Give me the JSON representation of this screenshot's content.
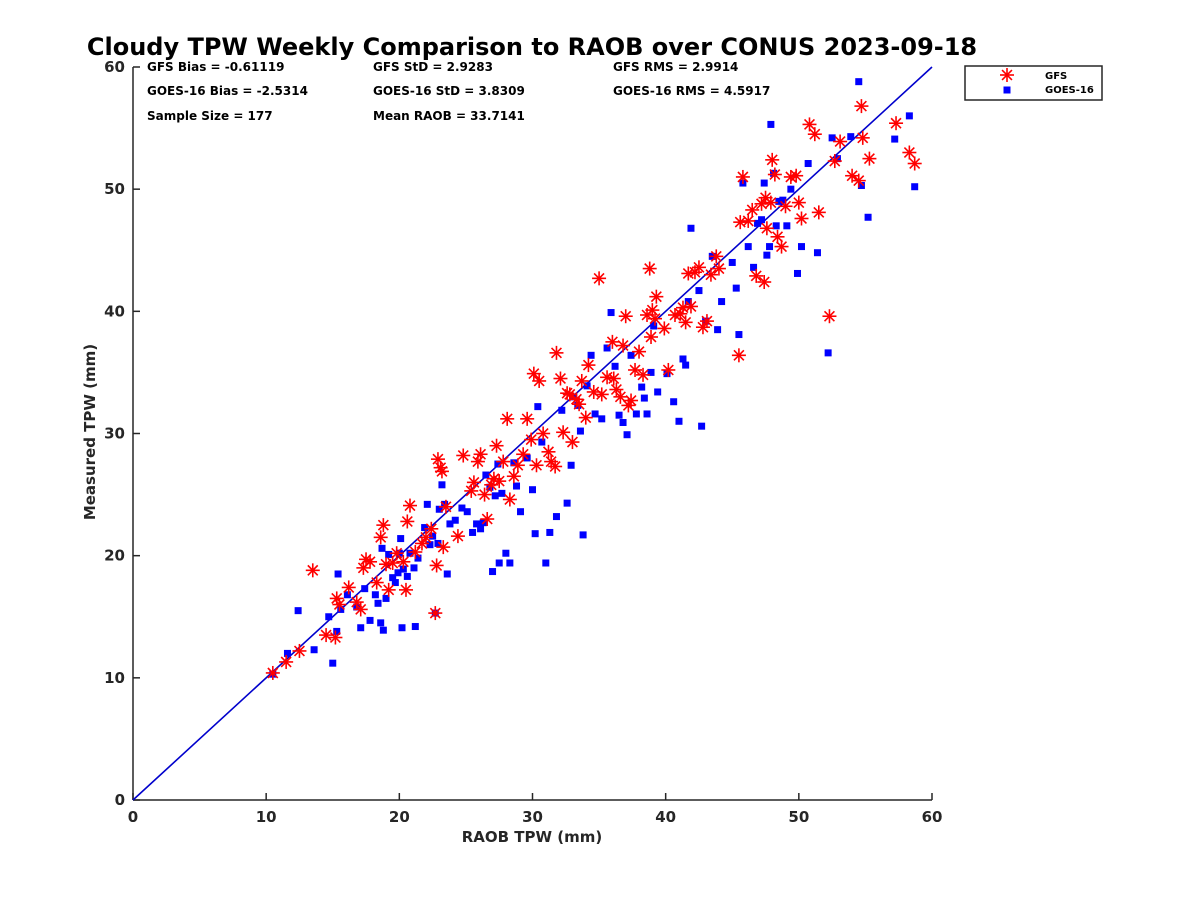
{
  "chart_data": {
    "type": "scatter",
    "title": "Cloudy TPW Weekly Comparison to RAOB over CONUS 2023-09-18",
    "xlabel": "RAOB TPW (mm)",
    "ylabel": "Measured TPW (mm)",
    "xlim": [
      0,
      60
    ],
    "ylim": [
      0,
      60
    ],
    "xticks": [
      "0",
      "10",
      "20",
      "30",
      "40",
      "50",
      "60"
    ],
    "yticks": [
      "0",
      "10",
      "20",
      "30",
      "40",
      "50",
      "60"
    ],
    "grid": false,
    "legend_position": "outside top-right",
    "stats": [
      "GFS Bias = -0.61119",
      "GFS StD = 2.9283",
      "GFS RMS = 2.9914",
      "GOES-16 Bias = -2.5314",
      "GOES-16 StD = 3.8309",
      "GOES-16 RMS = 4.5917",
      "Sample Size = 177",
      "Mean RAOB = 33.7141"
    ],
    "reference_line": {
      "x": [
        0,
        60
      ],
      "y": [
        0,
        60
      ],
      "color": "#0000cc"
    },
    "series": [
      {
        "name": "GFS",
        "marker": "asterisk",
        "color": "#ff0000",
        "points": [
          [
            10.5,
            10.4
          ],
          [
            12.5,
            12.2
          ],
          [
            11.5,
            11.3
          ],
          [
            13.5,
            18.8
          ],
          [
            14.5,
            13.5
          ],
          [
            15.2,
            13.3
          ],
          [
            15.3,
            16.5
          ],
          [
            15.5,
            16.0
          ],
          [
            16.2,
            17.4
          ],
          [
            16.8,
            16.2
          ],
          [
            17.1,
            15.6
          ],
          [
            17.3,
            19.0
          ],
          [
            17.5,
            19.7
          ],
          [
            17.8,
            19.5
          ],
          [
            18.3,
            17.8
          ],
          [
            18.6,
            21.5
          ],
          [
            18.8,
            22.5
          ],
          [
            19.0,
            19.3
          ],
          [
            19.2,
            17.2
          ],
          [
            19.5,
            19.4
          ],
          [
            19.8,
            20.2
          ],
          [
            20.3,
            19.5
          ],
          [
            20.5,
            17.2
          ],
          [
            20.6,
            22.8
          ],
          [
            20.8,
            24.1
          ],
          [
            21.2,
            20.3
          ],
          [
            21.7,
            21.0
          ],
          [
            22.0,
            21.5
          ],
          [
            22.4,
            22.2
          ],
          [
            22.7,
            15.3
          ],
          [
            22.8,
            19.2
          ],
          [
            22.9,
            27.9
          ],
          [
            23.1,
            27.2
          ],
          [
            23.2,
            26.9
          ],
          [
            23.3,
            20.7
          ],
          [
            23.5,
            24.0
          ],
          [
            24.4,
            21.6
          ],
          [
            24.8,
            28.2
          ],
          [
            25.4,
            25.3
          ],
          [
            25.6,
            26.0
          ],
          [
            25.9,
            27.7
          ],
          [
            26.1,
            28.3
          ],
          [
            26.4,
            25.0
          ],
          [
            26.6,
            23.0
          ],
          [
            26.9,
            25.8
          ],
          [
            27.1,
            26.3
          ],
          [
            27.3,
            29.0
          ],
          [
            27.5,
            26.1
          ],
          [
            27.8,
            27.7
          ],
          [
            28.1,
            31.2
          ],
          [
            28.3,
            24.6
          ],
          [
            28.6,
            26.5
          ],
          [
            28.9,
            27.4
          ],
          [
            29.3,
            28.3
          ],
          [
            29.6,
            31.2
          ],
          [
            29.9,
            29.5
          ],
          [
            30.1,
            34.9
          ],
          [
            30.3,
            27.4
          ],
          [
            30.5,
            34.3
          ],
          [
            30.8,
            30.0
          ],
          [
            31.2,
            28.5
          ],
          [
            31.4,
            27.7
          ],
          [
            31.7,
            27.3
          ],
          [
            31.8,
            36.6
          ],
          [
            32.1,
            34.5
          ],
          [
            32.3,
            30.1
          ],
          [
            32.6,
            33.3
          ],
          [
            32.8,
            33.2
          ],
          [
            33.0,
            29.3
          ],
          [
            33.3,
            32.8
          ],
          [
            33.5,
            32.4
          ],
          [
            33.7,
            34.3
          ],
          [
            34.0,
            31.3
          ],
          [
            34.2,
            35.6
          ],
          [
            34.6,
            33.4
          ],
          [
            35.0,
            42.7
          ],
          [
            35.2,
            33.2
          ],
          [
            35.6,
            34.6
          ],
          [
            36.0,
            37.5
          ],
          [
            36.1,
            34.5
          ],
          [
            36.3,
            33.6
          ],
          [
            36.6,
            33.0
          ],
          [
            36.8,
            37.2
          ],
          [
            37.0,
            39.6
          ],
          [
            37.2,
            32.3
          ],
          [
            37.4,
            32.7
          ],
          [
            37.7,
            35.2
          ],
          [
            38.0,
            36.7
          ],
          [
            38.3,
            34.8
          ],
          [
            38.6,
            39.7
          ],
          [
            38.8,
            43.5
          ],
          [
            38.9,
            37.9
          ],
          [
            39.0,
            40.1
          ],
          [
            39.2,
            39.4
          ],
          [
            39.3,
            41.2
          ],
          [
            39.9,
            38.6
          ],
          [
            40.2,
            35.2
          ],
          [
            40.7,
            39.7
          ],
          [
            41.1,
            39.8
          ],
          [
            41.3,
            40.3
          ],
          [
            41.5,
            39.1
          ],
          [
            41.7,
            43.1
          ],
          [
            41.9,
            40.4
          ],
          [
            42.2,
            43.2
          ],
          [
            42.5,
            43.6
          ],
          [
            42.8,
            38.7
          ],
          [
            43.1,
            39.2
          ],
          [
            43.4,
            43.0
          ],
          [
            43.8,
            44.5
          ],
          [
            44.0,
            43.5
          ],
          [
            45.5,
            36.4
          ],
          [
            45.6,
            47.3
          ],
          [
            45.8,
            51.0
          ],
          [
            46.2,
            47.4
          ],
          [
            46.5,
            48.3
          ],
          [
            46.8,
            42.9
          ],
          [
            47.2,
            48.8
          ],
          [
            47.4,
            42.4
          ],
          [
            47.5,
            49.3
          ],
          [
            47.6,
            46.8
          ],
          [
            47.9,
            48.9
          ],
          [
            48.0,
            52.4
          ],
          [
            48.2,
            51.2
          ],
          [
            48.4,
            46.1
          ],
          [
            48.7,
            45.3
          ],
          [
            49.0,
            48.6
          ],
          [
            49.4,
            51.0
          ],
          [
            49.8,
            51.1
          ],
          [
            50.0,
            48.9
          ],
          [
            50.2,
            47.6
          ],
          [
            50.8,
            55.3
          ],
          [
            51.2,
            54.5
          ],
          [
            51.5,
            48.1
          ],
          [
            52.3,
            39.6
          ],
          [
            52.7,
            52.3
          ],
          [
            53.1,
            53.9
          ],
          [
            54.0,
            51.1
          ],
          [
            54.5,
            50.7
          ],
          [
            54.7,
            56.8
          ],
          [
            54.8,
            54.2
          ],
          [
            55.3,
            52.5
          ],
          [
            57.3,
            55.4
          ],
          [
            58.3,
            53.0
          ],
          [
            58.7,
            52.1
          ]
        ]
      },
      {
        "name": "GOES-16",
        "marker": "square",
        "color": "#0000ff",
        "points": [
          [
            10.5,
            10.3
          ],
          [
            11.6,
            12.0
          ],
          [
            12.4,
            15.5
          ],
          [
            13.6,
            12.3
          ],
          [
            14.7,
            15.0
          ],
          [
            15.0,
            11.2
          ],
          [
            15.3,
            13.8
          ],
          [
            15.4,
            18.5
          ],
          [
            15.6,
            15.6
          ],
          [
            16.1,
            16.8
          ],
          [
            16.8,
            15.8
          ],
          [
            17.1,
            14.1
          ],
          [
            17.4,
            17.3
          ],
          [
            17.8,
            14.7
          ],
          [
            18.2,
            16.8
          ],
          [
            18.4,
            16.1
          ],
          [
            18.6,
            14.5
          ],
          [
            18.7,
            20.6
          ],
          [
            18.8,
            13.9
          ],
          [
            19.0,
            16.5
          ],
          [
            19.2,
            20.1
          ],
          [
            19.5,
            18.2
          ],
          [
            19.7,
            17.8
          ],
          [
            19.9,
            18.6
          ],
          [
            20.0,
            20.2
          ],
          [
            20.1,
            21.4
          ],
          [
            20.2,
            14.1
          ],
          [
            20.3,
            18.9
          ],
          [
            20.6,
            18.3
          ],
          [
            20.8,
            20.2
          ],
          [
            21.1,
            19.0
          ],
          [
            21.2,
            14.2
          ],
          [
            21.4,
            19.8
          ],
          [
            21.9,
            22.3
          ],
          [
            22.1,
            24.2
          ],
          [
            22.3,
            20.9
          ],
          [
            22.5,
            21.6
          ],
          [
            22.7,
            15.3
          ],
          [
            22.9,
            21.0
          ],
          [
            23.0,
            23.8
          ],
          [
            23.2,
            25.8
          ],
          [
            23.4,
            24.2
          ],
          [
            23.6,
            18.5
          ],
          [
            23.8,
            22.6
          ],
          [
            24.2,
            22.9
          ],
          [
            24.7,
            23.9
          ],
          [
            25.1,
            23.6
          ],
          [
            25.5,
            21.9
          ],
          [
            25.8,
            22.6
          ],
          [
            26.1,
            22.2
          ],
          [
            26.3,
            22.7
          ],
          [
            26.5,
            26.6
          ],
          [
            26.8,
            25.6
          ],
          [
            27.0,
            18.7
          ],
          [
            27.2,
            24.9
          ],
          [
            27.4,
            27.5
          ],
          [
            27.5,
            19.4
          ],
          [
            27.7,
            25.1
          ],
          [
            28.0,
            20.2
          ],
          [
            28.3,
            19.4
          ],
          [
            28.6,
            27.6
          ],
          [
            28.8,
            25.7
          ],
          [
            29.1,
            23.6
          ],
          [
            29.6,
            28.0
          ],
          [
            30.0,
            25.4
          ],
          [
            30.2,
            21.8
          ],
          [
            30.4,
            32.2
          ],
          [
            30.7,
            29.3
          ],
          [
            31.0,
            19.4
          ],
          [
            31.3,
            21.9
          ],
          [
            31.8,
            23.2
          ],
          [
            32.2,
            31.9
          ],
          [
            32.6,
            24.3
          ],
          [
            32.9,
            27.4
          ],
          [
            33.1,
            33.0
          ],
          [
            33.4,
            32.3
          ],
          [
            33.6,
            30.2
          ],
          [
            33.8,
            21.7
          ],
          [
            34.1,
            33.9
          ],
          [
            34.4,
            36.4
          ],
          [
            34.7,
            31.6
          ],
          [
            35.2,
            31.2
          ],
          [
            35.6,
            37.0
          ],
          [
            35.9,
            39.9
          ],
          [
            36.2,
            35.5
          ],
          [
            36.5,
            31.5
          ],
          [
            36.8,
            30.9
          ],
          [
            37.1,
            29.9
          ],
          [
            37.4,
            36.4
          ],
          [
            37.8,
            31.6
          ],
          [
            38.2,
            33.8
          ],
          [
            38.4,
            32.9
          ],
          [
            38.6,
            31.6
          ],
          [
            38.9,
            35.0
          ],
          [
            39.1,
            38.8
          ],
          [
            39.4,
            33.4
          ],
          [
            40.1,
            34.9
          ],
          [
            40.6,
            32.6
          ],
          [
            41.0,
            31.0
          ],
          [
            41.3,
            36.1
          ],
          [
            41.5,
            35.6
          ],
          [
            41.7,
            40.8
          ],
          [
            41.9,
            46.8
          ],
          [
            42.5,
            41.7
          ],
          [
            42.7,
            30.6
          ],
          [
            43.0,
            39.2
          ],
          [
            43.5,
            44.5
          ],
          [
            43.9,
            38.5
          ],
          [
            44.2,
            40.8
          ],
          [
            45.0,
            44.0
          ],
          [
            45.3,
            41.9
          ],
          [
            45.5,
            38.1
          ],
          [
            45.8,
            50.5
          ],
          [
            46.2,
            45.3
          ],
          [
            46.6,
            43.6
          ],
          [
            46.9,
            47.2
          ],
          [
            47.2,
            47.5
          ],
          [
            47.4,
            50.5
          ],
          [
            47.6,
            44.6
          ],
          [
            47.8,
            45.3
          ],
          [
            47.9,
            55.3
          ],
          [
            48.1,
            51.3
          ],
          [
            48.3,
            47.0
          ],
          [
            48.5,
            49.0
          ],
          [
            48.8,
            49.1
          ],
          [
            49.1,
            47.0
          ],
          [
            49.4,
            50.0
          ],
          [
            49.9,
            43.1
          ],
          [
            50.2,
            45.3
          ],
          [
            50.7,
            52.1
          ],
          [
            51.4,
            44.8
          ],
          [
            52.2,
            36.6
          ],
          [
            52.5,
            54.2
          ],
          [
            52.9,
            52.5
          ],
          [
            53.9,
            54.3
          ],
          [
            54.5,
            58.8
          ],
          [
            54.7,
            50.3
          ],
          [
            55.2,
            47.7
          ],
          [
            57.2,
            54.1
          ],
          [
            58.3,
            56.0
          ],
          [
            58.7,
            50.2
          ]
        ]
      }
    ]
  }
}
